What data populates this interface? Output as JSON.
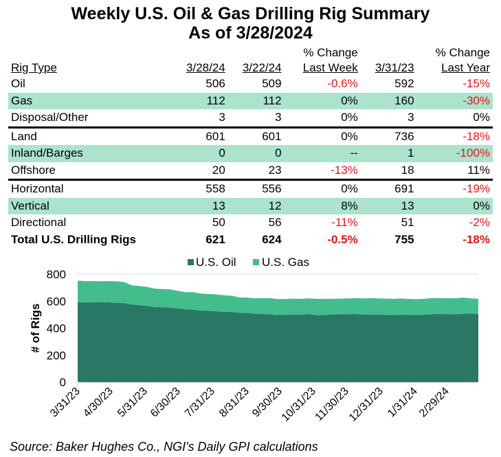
{
  "title": "Weekly U.S. Oil & Gas Drilling Rig Summary",
  "subtitle": "As of 3/28/2024",
  "table": {
    "headers": {
      "rig_type": "Rig Type",
      "col1": "3/28/24",
      "col2": "3/22/24",
      "col3_line1": "% Change",
      "col3_line2": "Last Week",
      "col4": "3/31/23",
      "col5_line1": "% Change",
      "col5_line2": "Last Year"
    },
    "rows": [
      {
        "type": "Oil",
        "current": "506",
        "prior_week": "509",
        "chg_week": "-0.6%",
        "year_ago": "592",
        "chg_year": "-15%"
      },
      {
        "type": "Gas",
        "current": "112",
        "prior_week": "112",
        "chg_week": "0%",
        "year_ago": "160",
        "chg_year": "-30%"
      },
      {
        "type": "Disposal/Other",
        "current": "3",
        "prior_week": "3",
        "chg_week": "0%",
        "year_ago": "3",
        "chg_year": "0%"
      },
      {
        "type": "Land",
        "current": "601",
        "prior_week": "601",
        "chg_week": "0%",
        "year_ago": "736",
        "chg_year": "-18%"
      },
      {
        "type": "Inland/Barges",
        "current": "0",
        "prior_week": "0",
        "chg_week": "--",
        "year_ago": "1",
        "chg_year": "-100%"
      },
      {
        "type": "Offshore",
        "current": "20",
        "prior_week": "23",
        "chg_week": "-13%",
        "year_ago": "18",
        "chg_year": "11%"
      },
      {
        "type": "Horizontal",
        "current": "558",
        "prior_week": "556",
        "chg_week": "0%",
        "year_ago": "691",
        "chg_year": "-19%"
      },
      {
        "type": "Vertical",
        "current": "13",
        "prior_week": "12",
        "chg_week": "8%",
        "year_ago": "13",
        "chg_year": "0%"
      },
      {
        "type": "Directional",
        "current": "50",
        "prior_week": "56",
        "chg_week": "-11%",
        "year_ago": "51",
        "chg_year": "-2%"
      },
      {
        "type": "Total U.S. Drilling Rigs",
        "current": "621",
        "prior_week": "624",
        "chg_week": "-0.5%",
        "year_ago": "755",
        "chg_year": "-18%"
      }
    ]
  },
  "colors": {
    "oil": "#297865",
    "gas": "#44bd8c",
    "row_highlight": "#abe3cc",
    "negative": "#e3151a"
  },
  "chart_data": {
    "type": "area",
    "stacked": true,
    "title": "",
    "xlabel": "",
    "ylabel": "# of Rigs",
    "ylim": [
      0,
      800
    ],
    "yticks": [
      0,
      200,
      400,
      600,
      800
    ],
    "x_tick_labels": [
      "3/31/23",
      "4/30/23",
      "5/31/23",
      "6/30/23",
      "7/31/23",
      "8/31/23",
      "9/30/23",
      "10/31/23",
      "11/30/23",
      "12/31/23",
      "1/31/24",
      "2/29/24"
    ],
    "x_range": [
      "3/31/23",
      "3/28/24"
    ],
    "legend": [
      "U.S. Oil",
      "U.S. Gas"
    ],
    "legend_position": "top",
    "grid": "top line only",
    "series": [
      {
        "name": "U.S. Oil",
        "values": [
          592,
          590,
          591,
          591,
          591,
          588,
          586,
          575,
          570,
          565,
          556,
          555,
          552,
          545,
          540,
          537,
          530,
          529,
          525,
          520,
          520,
          513,
          512,
          507,
          505,
          502,
          497,
          499,
          501,
          500,
          504,
          496,
          497,
          500,
          503,
          503,
          505,
          501,
          500,
          501,
          499,
          497,
          499,
          499,
          498,
          499,
          503,
          506,
          503,
          502,
          506,
          509,
          506
        ]
      },
      {
        "name": "U.S. Gas",
        "values": [
          160,
          159,
          158,
          157,
          158,
          159,
          157,
          143,
          142,
          141,
          137,
          135,
          136,
          131,
          127,
          130,
          126,
          124,
          125,
          124,
          120,
          115,
          114,
          114,
          118,
          120,
          119,
          117,
          118,
          117,
          117,
          121,
          120,
          117,
          116,
          117,
          117,
          119,
          122,
          119,
          120,
          120,
          121,
          117,
          117,
          119,
          120,
          117,
          119,
          119,
          121,
          112,
          112
        ]
      }
    ]
  },
  "source": "Source: Baker Hughes Co., NGI's Daily GPI calculations"
}
